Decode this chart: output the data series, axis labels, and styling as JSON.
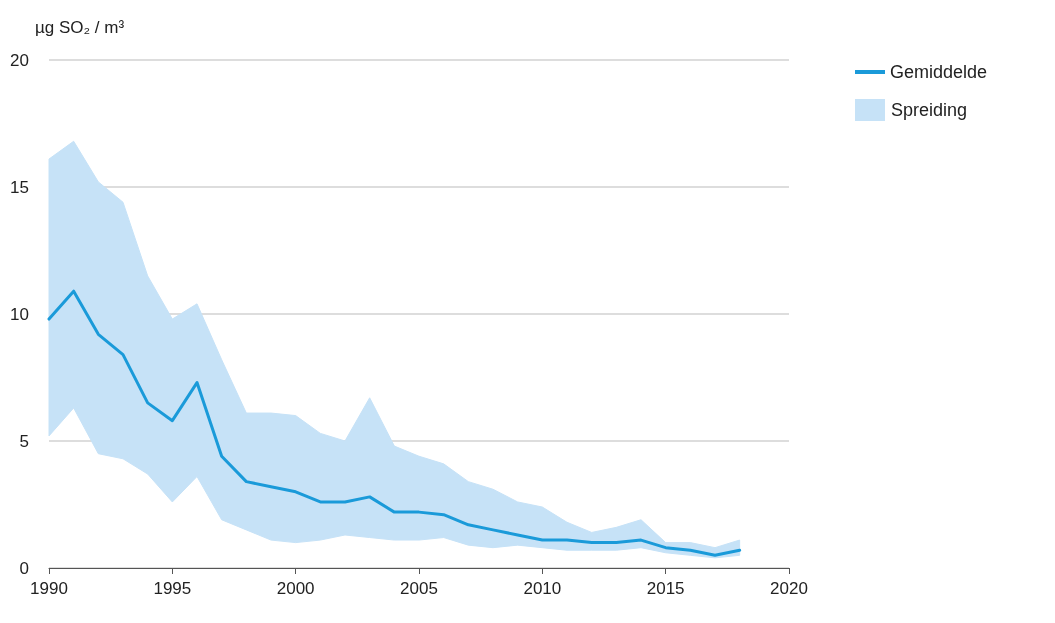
{
  "chart_data": {
    "type": "line",
    "ylabel": "µg SO₂ / m³",
    "x": [
      1990,
      1991,
      1992,
      1993,
      1994,
      1995,
      1996,
      1997,
      1998,
      1999,
      2000,
      2001,
      2002,
      2003,
      2004,
      2005,
      2006,
      2007,
      2008,
      2009,
      2010,
      2011,
      2012,
      2013,
      2014,
      2015,
      2016,
      2017,
      2018
    ],
    "series": [
      {
        "name": "Gemiddelde",
        "color": "#1a9ad9",
        "values": [
          9.8,
          10.9,
          9.2,
          8.4,
          6.5,
          5.8,
          7.3,
          4.4,
          3.4,
          3.2,
          3.0,
          2.6,
          2.6,
          2.8,
          2.2,
          2.2,
          2.1,
          1.7,
          1.5,
          1.3,
          1.1,
          1.1,
          1.0,
          1.0,
          1.1,
          0.8,
          0.7,
          0.5,
          0.7
        ],
        "lower": [
          5.2,
          6.3,
          4.5,
          4.3,
          3.7,
          2.6,
          3.6,
          1.9,
          1.5,
          1.1,
          1.0,
          1.1,
          1.3,
          1.2,
          1.1,
          1.1,
          1.2,
          0.9,
          0.8,
          0.9,
          0.8,
          0.7,
          0.7,
          0.7,
          0.8,
          0.6,
          0.5,
          0.4,
          0.5
        ],
        "upper": [
          16.1,
          16.8,
          15.2,
          14.4,
          11.5,
          9.8,
          10.4,
          8.2,
          6.1,
          6.1,
          6.0,
          5.3,
          5.0,
          6.7,
          4.8,
          4.4,
          4.1,
          3.4,
          3.1,
          2.6,
          2.4,
          1.8,
          1.4,
          1.6,
          1.9,
          1.0,
          1.0,
          0.8,
          1.1
        ]
      }
    ],
    "legend_title": "Spreiding",
    "xlim": [
      1990,
      2020
    ],
    "xticks": [
      1990,
      1995,
      2000,
      2005,
      2010,
      2015,
      2020
    ],
    "ylim": [
      0,
      20
    ],
    "yticks": [
      0,
      5,
      10,
      15,
      20
    ],
    "grid": "y",
    "legend": "top right",
    "marker": "none",
    "line_style": "solid"
  }
}
